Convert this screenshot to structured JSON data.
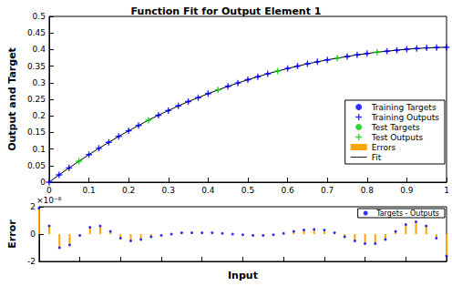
{
  "chart_data": [
    {
      "type": "scatter",
      "title": "Function Fit for Output Element 1",
      "y_label": "Output and Target",
      "xlim": [
        0,
        1
      ],
      "xticks": [
        0,
        0.1,
        0.2,
        0.3,
        0.4,
        0.5,
        0.6,
        0.7,
        0.8,
        0.9,
        1
      ],
      "ylim": [
        0,
        0.5
      ],
      "yticks": [
        0,
        0.05,
        0.1,
        0.15,
        0.2,
        0.25,
        0.3,
        0.35,
        0.4,
        0.45,
        0.5
      ],
      "legend": "right",
      "series": [
        {
          "name": "Training Targets",
          "color": "#0000ff",
          "marker": "dot",
          "x": [
            0,
            0.025,
            0.05,
            0.1,
            0.125,
            0.15,
            0.175,
            0.2,
            0.225,
            0.275,
            0.3,
            0.325,
            0.35,
            0.375,
            0.4,
            0.45,
            0.475,
            0.5,
            0.525,
            0.55,
            0.6,
            0.625,
            0.65,
            0.675,
            0.7,
            0.75,
            0.775,
            0.8,
            0.85,
            0.875,
            0.9,
            0.925,
            0.95,
            0.975,
            1
          ],
          "values": [
            0,
            0.022,
            0.043,
            0.083,
            0.102,
            0.12,
            0.138,
            0.155,
            0.171,
            0.202,
            0.216,
            0.23,
            0.243,
            0.255,
            0.267,
            0.289,
            0.299,
            0.309,
            0.318,
            0.327,
            0.343,
            0.35,
            0.357,
            0.363,
            0.369,
            0.379,
            0.384,
            0.388,
            0.395,
            0.398,
            0.401,
            0.403,
            0.405,
            0.406,
            0.407
          ]
        },
        {
          "name": "Training Outputs",
          "color": "#0000ff",
          "marker": "plus",
          "x": [
            0,
            0.025,
            0.05,
            0.1,
            0.125,
            0.15,
            0.175,
            0.2,
            0.225,
            0.275,
            0.3,
            0.325,
            0.35,
            0.375,
            0.4,
            0.45,
            0.475,
            0.5,
            0.525,
            0.55,
            0.6,
            0.625,
            0.65,
            0.675,
            0.7,
            0.75,
            0.775,
            0.8,
            0.85,
            0.875,
            0.9,
            0.925,
            0.95,
            0.975,
            1
          ],
          "values": [
            0,
            0.022,
            0.043,
            0.083,
            0.102,
            0.12,
            0.138,
            0.155,
            0.171,
            0.202,
            0.216,
            0.23,
            0.243,
            0.255,
            0.267,
            0.289,
            0.299,
            0.309,
            0.318,
            0.327,
            0.343,
            0.35,
            0.357,
            0.363,
            0.369,
            0.379,
            0.384,
            0.388,
            0.395,
            0.398,
            0.401,
            0.403,
            0.405,
            0.406,
            0.407
          ]
        },
        {
          "name": "Test Targets",
          "color": "#00cc00",
          "marker": "dot",
          "x": [
            0.075,
            0.25,
            0.425,
            0.575,
            0.725,
            0.825
          ],
          "values": [
            0.063,
            0.187,
            0.278,
            0.335,
            0.374,
            0.392
          ]
        },
        {
          "name": "Test Outputs",
          "color": "#00cc00",
          "marker": "plus",
          "x": [
            0.075,
            0.25,
            0.425,
            0.575,
            0.725,
            0.825
          ],
          "values": [
            0.063,
            0.187,
            0.278,
            0.335,
            0.374,
            0.392
          ]
        },
        {
          "name": "Fit",
          "type": "line",
          "color": "#000000",
          "line_style": "solid",
          "x": [
            0,
            0.025,
            0.05,
            0.075,
            0.1,
            0.125,
            0.15,
            0.175,
            0.2,
            0.225,
            0.25,
            0.275,
            0.3,
            0.325,
            0.35,
            0.375,
            0.4,
            0.425,
            0.45,
            0.475,
            0.5,
            0.525,
            0.55,
            0.575,
            0.6,
            0.625,
            0.65,
            0.675,
            0.7,
            0.725,
            0.75,
            0.775,
            0.8,
            0.825,
            0.85,
            0.875,
            0.9,
            0.925,
            0.95,
            0.975,
            1
          ],
          "values": [
            0,
            0.022,
            0.043,
            0.063,
            0.083,
            0.102,
            0.12,
            0.138,
            0.155,
            0.171,
            0.187,
            0.202,
            0.216,
            0.23,
            0.243,
            0.255,
            0.267,
            0.278,
            0.289,
            0.299,
            0.309,
            0.318,
            0.327,
            0.335,
            0.343,
            0.35,
            0.357,
            0.363,
            0.369,
            0.374,
            0.379,
            0.384,
            0.388,
            0.392,
            0.395,
            0.398,
            0.401,
            0.403,
            0.405,
            0.406,
            0.407
          ]
        }
      ]
    },
    {
      "type": "bar",
      "y_label": "Error",
      "x_label": "Input",
      "annotation": "×10⁻⁶",
      "xlim": [
        0,
        1
      ],
      "xticks": [
        0,
        0.1,
        0.2,
        0.3,
        0.4,
        0.5,
        0.6,
        0.7,
        0.8,
        0.9,
        1
      ],
      "ylim": [
        -2,
        2
      ],
      "yticks": [
        -2,
        0,
        2
      ],
      "tick_labels": "y",
      "legend": "upper right",
      "x": [
        0,
        0.025,
        0.05,
        0.075,
        0.1,
        0.125,
        0.15,
        0.175,
        0.2,
        0.225,
        0.25,
        0.275,
        0.3,
        0.325,
        0.35,
        0.375,
        0.4,
        0.425,
        0.45,
        0.475,
        0.5,
        0.525,
        0.55,
        0.575,
        0.6,
        0.625,
        0.65,
        0.675,
        0.7,
        0.725,
        0.75,
        0.775,
        0.8,
        0.825,
        0.85,
        0.875,
        0.9,
        0.925,
        0.95,
        0.975,
        1
      ],
      "series": [
        {
          "name": "Errors",
          "type": "bar",
          "color": "#ffa500",
          "values": [
            1.9,
            0.6,
            -1.0,
            -0.8,
            -0.1,
            0.5,
            0.6,
            0.2,
            -0.3,
            -0.5,
            -0.4,
            -0.2,
            -0.1,
            0.0,
            0.1,
            0.1,
            0.1,
            0.1,
            0.05,
            0.0,
            -0.05,
            -0.1,
            -0.1,
            -0.05,
            0.05,
            0.2,
            0.3,
            0.35,
            0.3,
            0.1,
            -0.2,
            -0.5,
            -0.7,
            -0.7,
            -0.4,
            0.2,
            0.7,
            0.9,
            0.6,
            -0.3,
            -1.6
          ]
        },
        {
          "name": "Targets - Outputs",
          "type": "scatter",
          "color": "#0000ff",
          "marker": "dot",
          "values": [
            1.9,
            0.6,
            -1.0,
            -0.8,
            -0.1,
            0.5,
            0.6,
            0.2,
            -0.3,
            -0.5,
            -0.4,
            -0.2,
            -0.1,
            0.0,
            0.1,
            0.1,
            0.1,
            0.1,
            0.05,
            0.0,
            -0.05,
            -0.1,
            -0.1,
            -0.05,
            0.05,
            0.2,
            0.3,
            0.35,
            0.3,
            0.1,
            -0.2,
            -0.5,
            -0.7,
            -0.7,
            -0.4,
            0.2,
            0.7,
            0.9,
            0.6,
            -0.3,
            -1.6
          ]
        }
      ]
    }
  ]
}
